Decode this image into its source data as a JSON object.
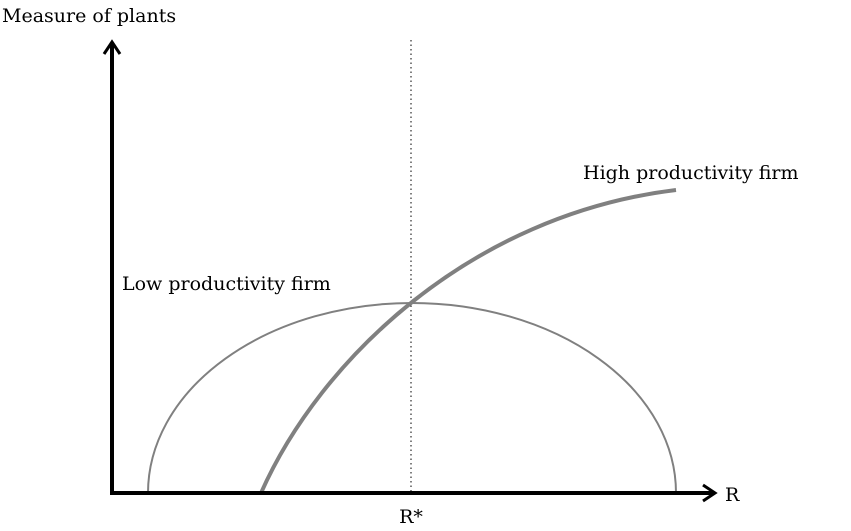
{
  "y_axis_label": "Measure of plants",
  "x_axis_label": "R",
  "threshold_label": "R*",
  "curves": [
    {
      "label": "High productivity firm"
    },
    {
      "label": "Low productivity firm"
    }
  ]
}
